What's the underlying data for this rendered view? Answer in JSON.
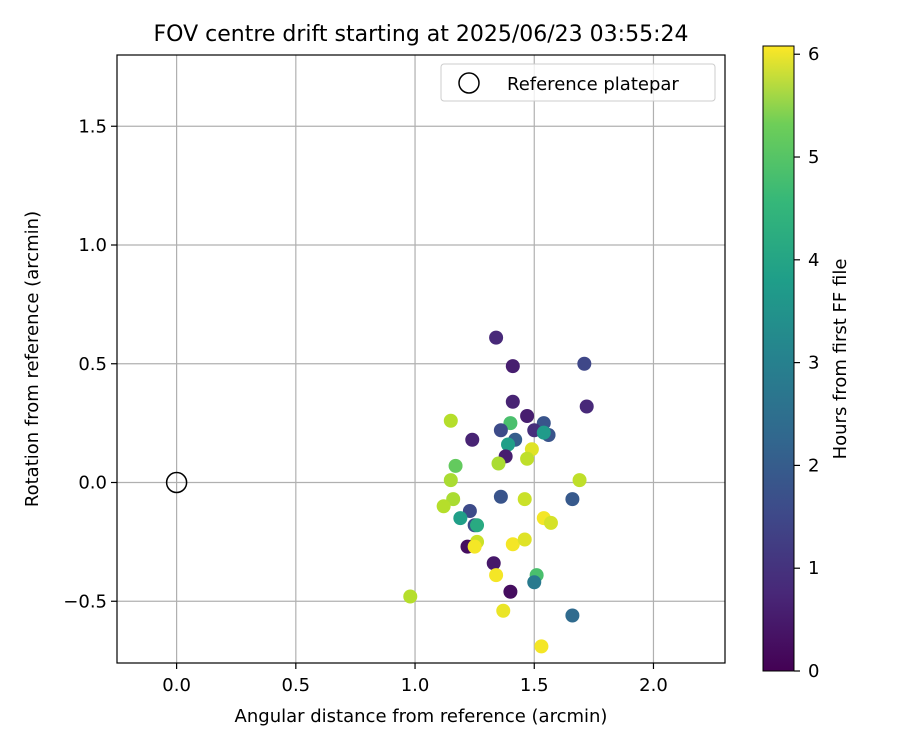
{
  "chart_data": {
    "type": "scatter",
    "title": "FOV centre drift starting at 2025/06/23 03:55:24",
    "xlabel": "Angular distance from reference (arcmin)",
    "ylabel": "Rotation from reference (arcmin)",
    "xlim": [
      -0.25,
      2.3
    ],
    "ylim": [
      -0.76,
      1.8
    ],
    "xticks": [
      0.0,
      0.5,
      1.0,
      1.5,
      2.0
    ],
    "xtick_labels": [
      "0.0",
      "0.5",
      "1.0",
      "1.5",
      "2.0"
    ],
    "yticks": [
      -0.5,
      0.0,
      0.5,
      1.0,
      1.5
    ],
    "ytick_labels": [
      "−0.5",
      "0.0",
      "0.5",
      "1.0",
      "1.5"
    ],
    "grid": true,
    "legend": {
      "position": "top-right",
      "entries": [
        {
          "label": "Reference platepar",
          "marker": "open-circle"
        }
      ]
    },
    "reference_point": {
      "x": 0.0,
      "y": 0.0
    },
    "colorbar": {
      "label": "Hours from first FF file",
      "colormap": "viridis",
      "range": [
        0,
        6.08
      ],
      "ticks": [
        0,
        1,
        2,
        3,
        4,
        5,
        6
      ],
      "tick_labels": [
        "0",
        "1",
        "2",
        "3",
        "4",
        "5",
        "6"
      ]
    },
    "points": [
      {
        "x": 1.34,
        "y": 0.61,
        "hours": 0.7
      },
      {
        "x": 1.41,
        "y": 0.49,
        "hours": 0.5
      },
      {
        "x": 1.71,
        "y": 0.5,
        "hours": 1.3
      },
      {
        "x": 1.41,
        "y": 0.34,
        "hours": 0.6
      },
      {
        "x": 1.72,
        "y": 0.32,
        "hours": 0.7
      },
      {
        "x": 1.47,
        "y": 0.28,
        "hours": 0.5
      },
      {
        "x": 1.15,
        "y": 0.26,
        "hours": 5.4
      },
      {
        "x": 1.4,
        "y": 0.25,
        "hours": 4.3
      },
      {
        "x": 1.54,
        "y": 0.25,
        "hours": 1.6
      },
      {
        "x": 1.36,
        "y": 0.22,
        "hours": 1.4
      },
      {
        "x": 1.5,
        "y": 0.22,
        "hours": 0.8
      },
      {
        "x": 1.56,
        "y": 0.2,
        "hours": 1.6
      },
      {
        "x": 1.54,
        "y": 0.21,
        "hours": 3.3
      },
      {
        "x": 1.42,
        "y": 0.18,
        "hours": 1.8
      },
      {
        "x": 1.24,
        "y": 0.18,
        "hours": 0.6
      },
      {
        "x": 1.39,
        "y": 0.16,
        "hours": 3.4
      },
      {
        "x": 1.49,
        "y": 0.14,
        "hours": 5.8
      },
      {
        "x": 1.38,
        "y": 0.11,
        "hours": 0.5
      },
      {
        "x": 1.47,
        "y": 0.1,
        "hours": 5.5
      },
      {
        "x": 1.35,
        "y": 0.08,
        "hours": 5.3
      },
      {
        "x": 1.17,
        "y": 0.07,
        "hours": 4.6
      },
      {
        "x": 1.15,
        "y": 0.01,
        "hours": 5.3
      },
      {
        "x": 1.69,
        "y": 0.01,
        "hours": 5.5
      },
      {
        "x": 1.16,
        "y": -0.07,
        "hours": 5.3
      },
      {
        "x": 1.36,
        "y": -0.06,
        "hours": 1.6
      },
      {
        "x": 1.46,
        "y": -0.07,
        "hours": 5.6
      },
      {
        "x": 1.66,
        "y": -0.07,
        "hours": 1.7
      },
      {
        "x": 1.12,
        "y": -0.1,
        "hours": 5.4
      },
      {
        "x": 1.23,
        "y": -0.12,
        "hours": 1.4
      },
      {
        "x": 1.19,
        "y": -0.15,
        "hours": 3.4
      },
      {
        "x": 1.54,
        "y": -0.15,
        "hours": 6.0
      },
      {
        "x": 1.25,
        "y": -0.18,
        "hours": 1.4
      },
      {
        "x": 1.26,
        "y": -0.18,
        "hours": 3.7
      },
      {
        "x": 1.57,
        "y": -0.17,
        "hours": 5.7
      },
      {
        "x": 1.26,
        "y": -0.25,
        "hours": 5.6
      },
      {
        "x": 1.41,
        "y": -0.26,
        "hours": 6.0
      },
      {
        "x": 1.46,
        "y": -0.24,
        "hours": 5.8
      },
      {
        "x": 1.22,
        "y": -0.27,
        "hours": 0.2
      },
      {
        "x": 1.25,
        "y": -0.27,
        "hours": 6.0
      },
      {
        "x": 1.33,
        "y": -0.34,
        "hours": 0.4
      },
      {
        "x": 1.34,
        "y": -0.39,
        "hours": 6.0
      },
      {
        "x": 1.51,
        "y": -0.39,
        "hours": 4.3
      },
      {
        "x": 1.5,
        "y": -0.42,
        "hours": 2.5
      },
      {
        "x": 1.4,
        "y": -0.46,
        "hours": 0.2
      },
      {
        "x": 0.98,
        "y": -0.48,
        "hours": 5.4
      },
      {
        "x": 1.37,
        "y": -0.54,
        "hours": 5.9
      },
      {
        "x": 1.66,
        "y": -0.56,
        "hours": 2.1
      },
      {
        "x": 1.53,
        "y": -0.69,
        "hours": 6.0
      }
    ]
  }
}
